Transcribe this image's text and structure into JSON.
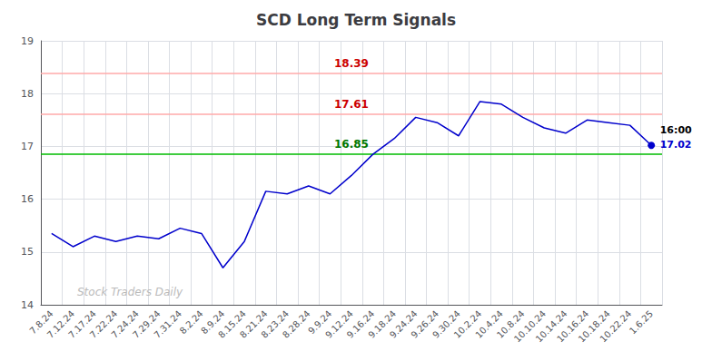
{
  "chart_data": {
    "type": "line",
    "title": "SCD Long Term Signals",
    "categories": [
      "7.8.24",
      "7.12.24",
      "7.17.24",
      "7.22.24",
      "7.24.24",
      "7.29.24",
      "7.31.24",
      "8.2.24",
      "8.9.24",
      "8.15.24",
      "8.21.24",
      "8.23.24",
      "8.28.24",
      "9.9.24",
      "9.12.24",
      "9.16.24",
      "9.18.24",
      "9.24.24",
      "9.26.24",
      "9.30.24",
      "10.2.24",
      "10.4.24",
      "10.8.24",
      "10.10.24",
      "10.14.24",
      "10.16.24",
      "10.18.24",
      "10.22.24",
      "1.6.25"
    ],
    "values": [
      15.35,
      15.1,
      15.3,
      15.2,
      15.3,
      15.25,
      15.45,
      15.35,
      14.7,
      15.2,
      16.15,
      16.1,
      16.25,
      16.1,
      16.45,
      16.85,
      17.15,
      17.55,
      17.45,
      17.2,
      17.85,
      17.8,
      17.55,
      17.35,
      17.25,
      17.5,
      17.45,
      17.4,
      17.02
    ],
    "color": "#0000cc",
    "hlines": [
      {
        "value": 18.39,
        "label": "18.39",
        "color": "#ffaaaa",
        "label_color": "#cc0000"
      },
      {
        "value": 17.61,
        "label": "17.61",
        "color": "#ffaaaa",
        "label_color": "#cc0000"
      },
      {
        "value": 16.85,
        "label": "16.85",
        "color": "#00bb00",
        "label_color": "#007700"
      }
    ],
    "end_labels": [
      {
        "text": "16:00",
        "color": "#000000"
      },
      {
        "text": "17.02",
        "color": "#0000cc"
      }
    ],
    "watermark": {
      "text": "Stock Traders Daily",
      "color": "#bbbbbb"
    },
    "ylim": [
      14.0,
      19.0
    ],
    "yticks": [
      14,
      15,
      16,
      17,
      18,
      19
    ],
    "grid": true
  }
}
